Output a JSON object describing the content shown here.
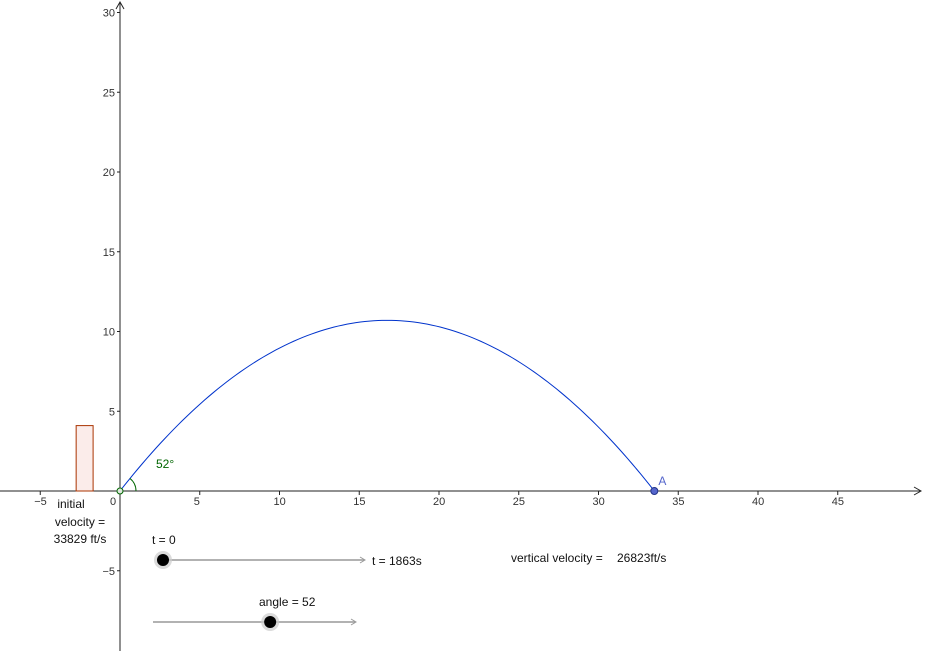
{
  "graph": {
    "x_axis": {
      "min": -7.5,
      "max": 50,
      "tick_step": 5,
      "tick_labels": [
        "−5",
        "0",
        "5",
        "10",
        "15",
        "20",
        "25",
        "30",
        "35",
        "40",
        "45"
      ],
      "tick_values": [
        -5,
        0,
        5,
        10,
        15,
        20,
        25,
        30,
        35,
        40,
        45
      ]
    },
    "y_axis": {
      "min": -10,
      "max": 30,
      "tick_step": 5,
      "tick_labels": [
        "−5",
        "5",
        "10",
        "15",
        "20",
        "25",
        "30"
      ],
      "tick_values": [
        -5,
        5,
        10,
        15,
        20,
        25,
        30
      ]
    },
    "trajectory": {
      "color": "#0033cc",
      "x_start": 0,
      "x_end": 33.5,
      "peak_height": 10.7
    },
    "launch_angle_label": "52°",
    "angle_color": "#006600",
    "point_a": {
      "label": "A",
      "x": 33.5,
      "y": 0,
      "color": "#5566cc"
    },
    "velocity_bar": {
      "x_start": -3,
      "x_end": -2,
      "height": 4.1,
      "stroke": "#aa3300",
      "fill": "#fbecea"
    }
  },
  "texts": {
    "initial_velocity_line1": "initial",
    "initial_velocity_line2": "velocity =",
    "initial_velocity_line3": "33829 ft/s",
    "vertical_velocity_label": "vertical velocity =",
    "vertical_velocity_value": "26823ft/s"
  },
  "sliders": {
    "t": {
      "label": "t = 0",
      "end_label": "t = 1863s",
      "value_fraction": 0.0
    },
    "angle": {
      "label": "angle = 52",
      "value_fraction": 0.58
    }
  }
}
